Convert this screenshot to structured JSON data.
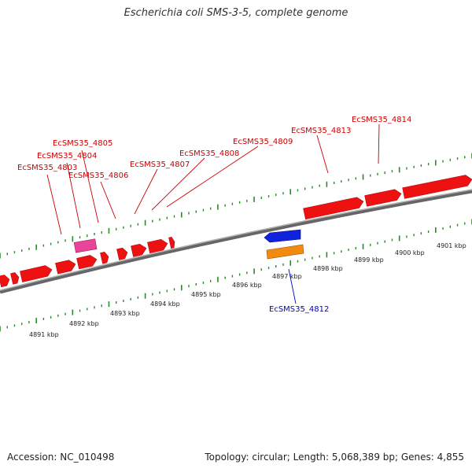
{
  "title": "Escherichia coli SMS-3-5, complete genome",
  "footer": {
    "accession": "Accession: NC_010498",
    "topology": "Topology: circular; Length: 5,068,389 bp; Genes: 4,855"
  },
  "colors": {
    "forward_gene": "#ee1111",
    "reverse_gene": "#1122dd",
    "pink_feature": "#e8449a",
    "orange_feature": "#f28a10",
    "tick": "#2a8a2a",
    "backbone": "#888888",
    "label_forward": "#cc0000",
    "label_reverse": "#0000cc"
  },
  "gene_labels_top": [
    "EcSMS35_4803",
    "EcSMS35_4804",
    "EcSMS35_4805",
    "EcSMS35_4806",
    "EcSMS35_4807",
    "EcSMS35_4808",
    "EcSMS35_4809",
    "EcSMS35_4813",
    "EcSMS35_4814"
  ],
  "gene_labels_bottom": [
    "EcSMS35_4812"
  ],
  "kbp_labels": [
    "4891 kbp",
    "4892 kbp",
    "4893 kbp",
    "4894 kbp",
    "4895 kbp",
    "4896 kbp",
    "4897 kbp",
    "4898 kbp",
    "4899 kbp",
    "4900 kbp",
    "4901 kbp"
  ]
}
